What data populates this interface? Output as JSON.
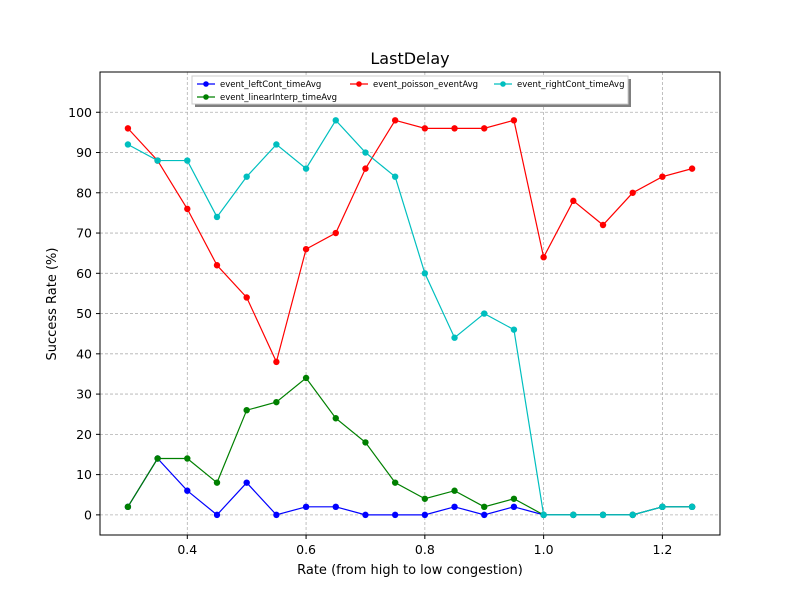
{
  "chart_data": {
    "type": "line",
    "title": "LastDelay",
    "xlabel": "Rate (from high to low congestion)",
    "ylabel": "Success Rate (%)",
    "xlim": [
      0.253,
      1.297
    ],
    "ylim": [
      -5,
      110
    ],
    "xticks": [
      0.4,
      0.6,
      0.8,
      1.0,
      1.2
    ],
    "xtick_labels": [
      "0.4",
      "0.6",
      "0.8",
      "1.0",
      "1.2"
    ],
    "yticks": [
      0,
      10,
      20,
      30,
      40,
      50,
      60,
      70,
      80,
      90,
      100
    ],
    "ytick_labels": [
      "0",
      "10",
      "20",
      "30",
      "40",
      "50",
      "60",
      "70",
      "80",
      "90",
      "100"
    ],
    "grid": true,
    "legend_position": "top-center",
    "x": [
      0.3,
      0.35,
      0.4,
      0.45,
      0.5,
      0.55,
      0.6,
      0.65,
      0.7,
      0.75,
      0.8,
      0.85,
      0.9,
      0.95,
      1.0,
      1.05,
      1.1,
      1.15,
      1.2,
      1.25
    ],
    "series": [
      {
        "name": "event_leftCont_timeAvg",
        "color": "#0000ff",
        "values": [
          2,
          14,
          6,
          0,
          8,
          0,
          2,
          2,
          0,
          0,
          0,
          2,
          0,
          2,
          0,
          0,
          0,
          0,
          2,
          2
        ]
      },
      {
        "name": "event_linearInterp_timeAvg",
        "color": "#008000",
        "values": [
          2,
          14,
          14,
          8,
          26,
          28,
          34,
          24,
          18,
          8,
          4,
          6,
          2,
          4,
          0,
          0,
          0,
          0,
          2,
          2
        ]
      },
      {
        "name": "event_poisson_eventAvg",
        "color": "#ff0000",
        "values": [
          96,
          88,
          76,
          62,
          54,
          38,
          66,
          70,
          86,
          98,
          96,
          96,
          96,
          98,
          64,
          78,
          72,
          80,
          84,
          86
        ]
      },
      {
        "name": "event_rightCont_timeAvg",
        "color": "#00bfbf",
        "values": [
          92,
          88,
          88,
          74,
          84,
          92,
          86,
          98,
          90,
          84,
          60,
          44,
          50,
          46,
          0,
          0,
          0,
          0,
          2,
          2
        ]
      }
    ]
  }
}
